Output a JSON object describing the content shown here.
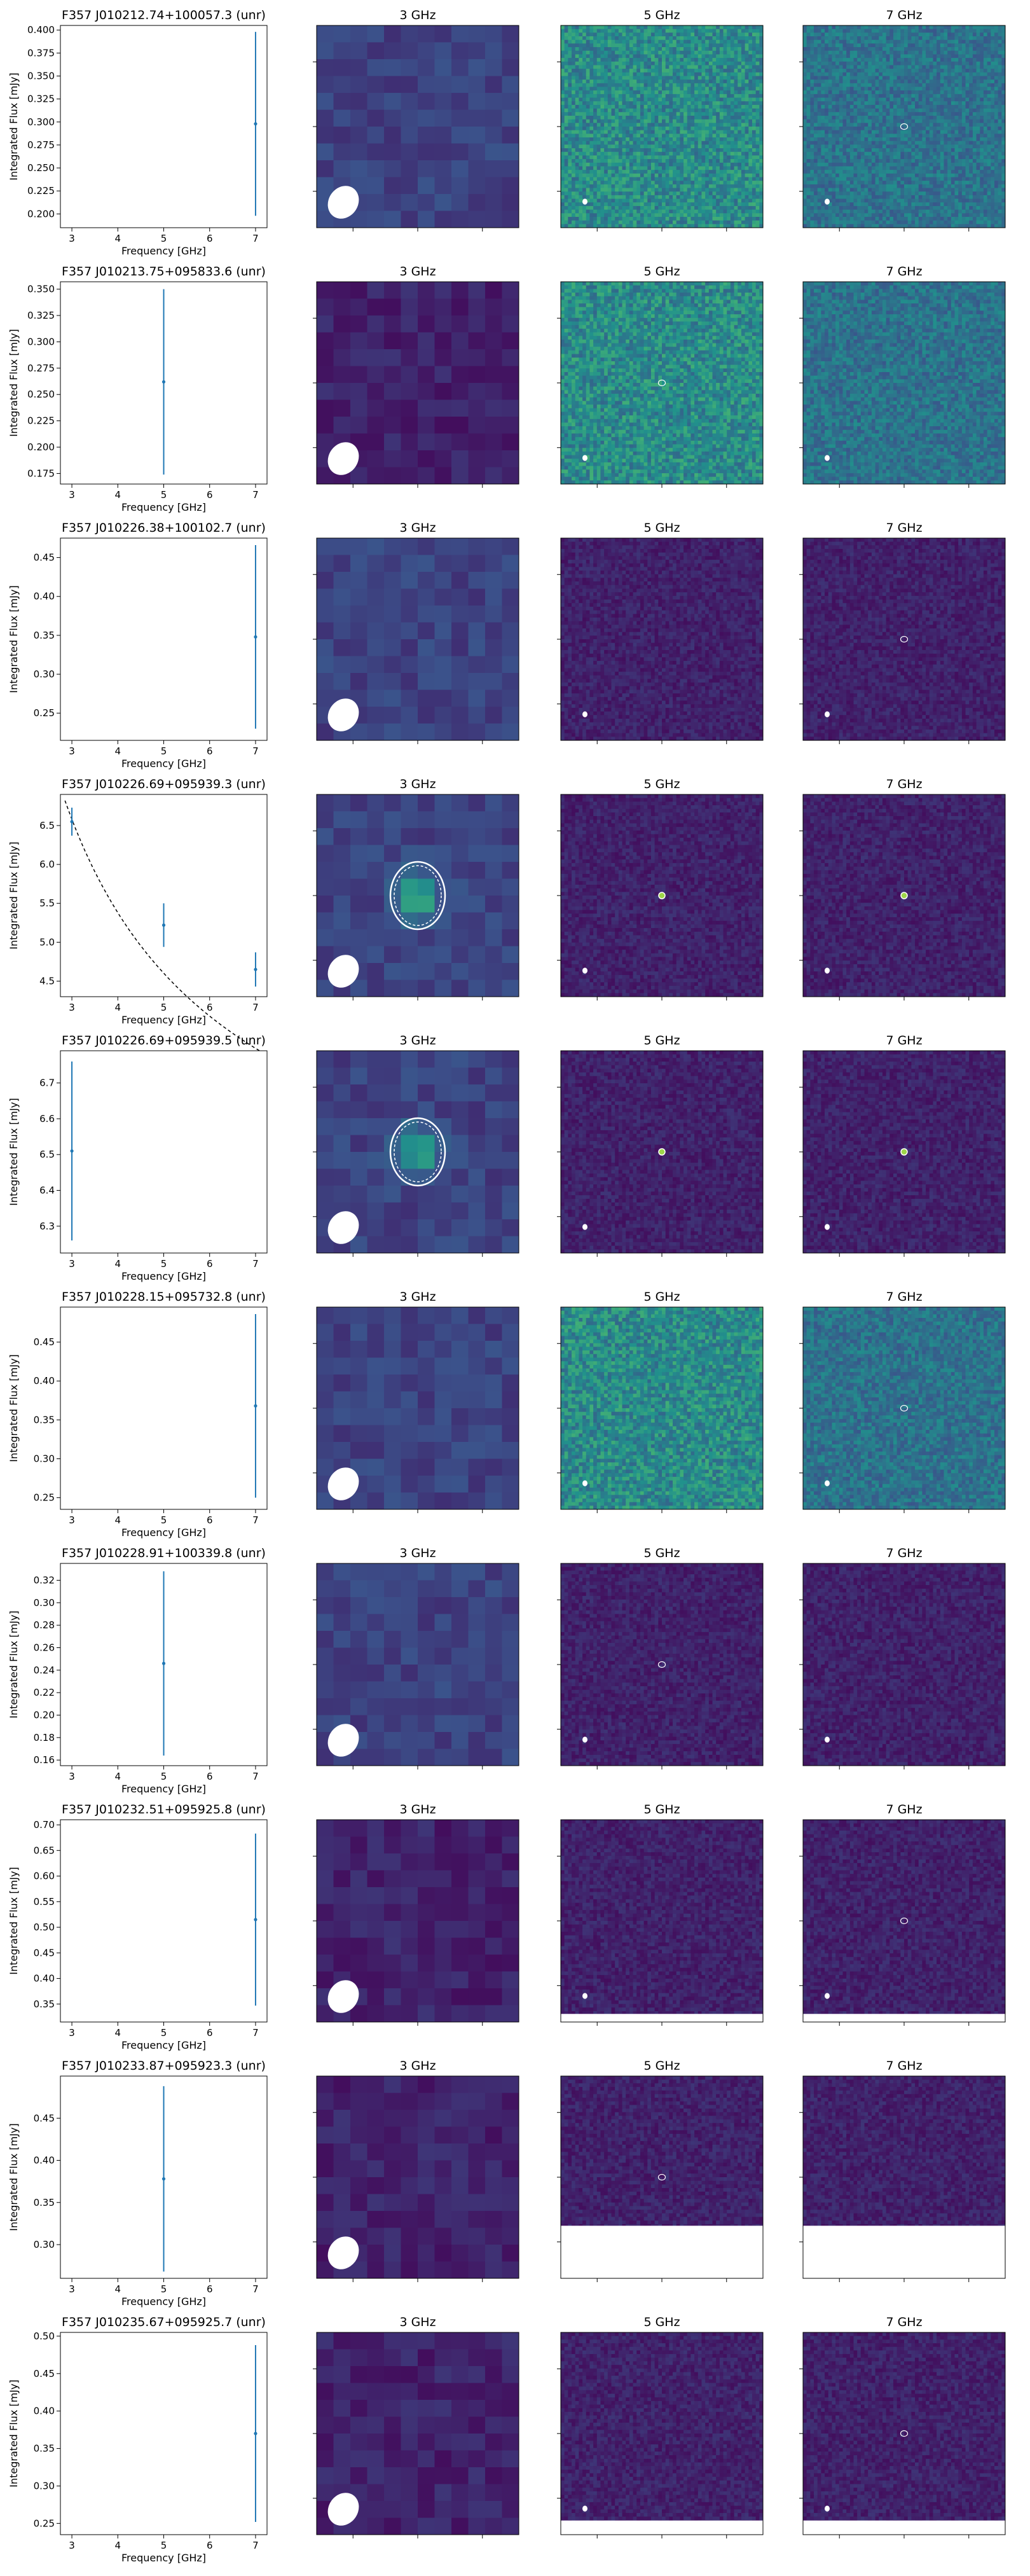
{
  "figure": {
    "panel_titles": [
      "3 GHz",
      "5 GHz",
      "7 GHz"
    ],
    "xlabel": "Frequency [GHz]",
    "ylabel": "Integrated Flux [mJy]",
    "x_ticks": [
      3,
      4,
      5,
      6,
      7
    ],
    "xlim": [
      2.75,
      7.25
    ]
  },
  "colors": {
    "errorbar": "#1f77b4",
    "fit_line": "#000000",
    "contour": "#ffffff",
    "beam": "#ffffff",
    "blank": "#ffffff"
  },
  "chart_data": [
    {
      "type": "scatter",
      "title": "F357 J010212.74+100057.3 (unr)",
      "x": [
        7
      ],
      "y": [
        0.298
      ],
      "yerr": [
        0.1
      ],
      "ylim": [
        0.185,
        0.405
      ],
      "y_ticks": [
        "0.200",
        "0.225",
        "0.250",
        "0.275",
        "0.300",
        "0.325",
        "0.350",
        "0.375",
        "0.400"
      ],
      "fit": false,
      "images": [
        {
          "freq": "3 GHz",
          "style": "coarse",
          "palette": "dim",
          "source": "none",
          "beam": "large"
        },
        {
          "freq": "5 GHz",
          "style": "fine",
          "palette": "bright",
          "source": "none",
          "beam": "small",
          "blank_bottom": 0
        },
        {
          "freq": "7 GHz",
          "style": "fine",
          "palette": "medium",
          "source": "faint",
          "beam": "small",
          "blank_bottom": 0
        }
      ]
    },
    {
      "type": "scatter",
      "title": "F357 J010213.75+095833.6 (unr)",
      "x": [
        5
      ],
      "y": [
        0.262
      ],
      "yerr": [
        0.088
      ],
      "ylim": [
        0.165,
        0.357
      ],
      "y_ticks": [
        "0.175",
        "0.200",
        "0.225",
        "0.250",
        "0.275",
        "0.300",
        "0.325",
        "0.350"
      ],
      "fit": false,
      "images": [
        {
          "freq": "3 GHz",
          "style": "coarse",
          "palette": "dark",
          "source": "none",
          "beam": "large"
        },
        {
          "freq": "5 GHz",
          "style": "fine",
          "palette": "bright",
          "source": "faint",
          "beam": "small",
          "blank_bottom": 0
        },
        {
          "freq": "7 GHz",
          "style": "fine",
          "palette": "medium",
          "source": "none",
          "beam": "small",
          "blank_bottom": 0
        }
      ]
    },
    {
      "type": "scatter",
      "title": "F357 J010226.38+100102.7 (unr)",
      "x": [
        7
      ],
      "y": [
        0.348
      ],
      "yerr": [
        0.118
      ],
      "ylim": [
        0.215,
        0.475
      ],
      "y_ticks": [
        "0.25",
        "0.30",
        "0.35",
        "0.40",
        "0.45"
      ],
      "fit": false,
      "images": [
        {
          "freq": "3 GHz",
          "style": "coarse",
          "palette": "dim",
          "source": "none",
          "beam": "large"
        },
        {
          "freq": "5 GHz",
          "style": "fine",
          "palette": "dark",
          "source": "none",
          "beam": "small",
          "blank_bottom": 0
        },
        {
          "freq": "7 GHz",
          "style": "fine",
          "palette": "dark",
          "source": "faint",
          "beam": "small",
          "blank_bottom": 0
        }
      ]
    },
    {
      "type": "scatter",
      "title": "F357 J010226.69+095939.3 (unr)",
      "x": [
        3,
        5,
        7
      ],
      "y": [
        6.55,
        5.22,
        4.65
      ],
      "yerr": [
        0.18,
        0.28,
        0.22
      ],
      "ylim": [
        4.3,
        6.9
      ],
      "y_ticks": [
        "4.5",
        "5.0",
        "5.5",
        "6.0",
        "6.5"
      ],
      "fit": true,
      "fit_curve": {
        "x_start": 2.85,
        "x_end": 7.2,
        "y_at_3": 6.58,
        "alpha": -0.7
      },
      "images": [
        {
          "freq": "3 GHz",
          "style": "coarse",
          "palette": "dim",
          "source": "bright",
          "beam": "large"
        },
        {
          "freq": "5 GHz",
          "style": "fine",
          "palette": "dark",
          "source": "point",
          "beam": "small",
          "blank_bottom": 0
        },
        {
          "freq": "7 GHz",
          "style": "fine",
          "palette": "dark",
          "source": "point",
          "beam": "small",
          "blank_bottom": 0
        }
      ]
    },
    {
      "type": "scatter",
      "title": "F357 J010226.69+095939.5 (unr)",
      "x": [
        3
      ],
      "y": [
        6.51
      ],
      "yerr": [
        0.25
      ],
      "ylim": [
        6.225,
        6.79
      ],
      "y_ticks": [
        "6.3",
        "6.4",
        "6.5",
        "6.6",
        "6.7"
      ],
      "fit": false,
      "images": [
        {
          "freq": "3 GHz",
          "style": "coarse",
          "palette": "dim",
          "source": "bright",
          "beam": "large"
        },
        {
          "freq": "5 GHz",
          "style": "fine",
          "palette": "dark",
          "source": "point",
          "beam": "small",
          "blank_bottom": 0
        },
        {
          "freq": "7 GHz",
          "style": "fine",
          "palette": "dark",
          "source": "point",
          "beam": "small",
          "blank_bottom": 0
        }
      ]
    },
    {
      "type": "scatter",
      "title": "F357 J010228.15+095732.8 (unr)",
      "x": [
        7
      ],
      "y": [
        0.368
      ],
      "yerr": [
        0.118
      ],
      "ylim": [
        0.235,
        0.495
      ],
      "y_ticks": [
        "0.25",
        "0.30",
        "0.35",
        "0.40",
        "0.45"
      ],
      "fit": false,
      "images": [
        {
          "freq": "3 GHz",
          "style": "coarse",
          "palette": "dim",
          "source": "none",
          "beam": "large"
        },
        {
          "freq": "5 GHz",
          "style": "fine",
          "palette": "bright",
          "source": "none",
          "beam": "small",
          "blank_bottom": 0
        },
        {
          "freq": "7 GHz",
          "style": "fine",
          "palette": "medium",
          "source": "faint",
          "beam": "small",
          "blank_bottom": 0
        }
      ]
    },
    {
      "type": "scatter",
      "title": "F357 J010228.91+100339.8 (unr)",
      "x": [
        5
      ],
      "y": [
        0.246
      ],
      "yerr": [
        0.082
      ],
      "ylim": [
        0.155,
        0.335
      ],
      "y_ticks": [
        "0.16",
        "0.18",
        "0.20",
        "0.22",
        "0.24",
        "0.26",
        "0.28",
        "0.30",
        "0.32"
      ],
      "fit": false,
      "images": [
        {
          "freq": "3 GHz",
          "style": "coarse",
          "palette": "dim",
          "source": "none",
          "beam": "large"
        },
        {
          "freq": "5 GHz",
          "style": "fine",
          "palette": "dark",
          "source": "faint",
          "beam": "small",
          "blank_bottom": 0
        },
        {
          "freq": "7 GHz",
          "style": "fine",
          "palette": "dark",
          "source": "none",
          "beam": "small",
          "blank_bottom": 0
        }
      ]
    },
    {
      "type": "scatter",
      "title": "F357 J010232.51+095925.8 (unr)",
      "x": [
        7
      ],
      "y": [
        0.515
      ],
      "yerr": [
        0.168
      ],
      "ylim": [
        0.315,
        0.71
      ],
      "y_ticks": [
        "0.35",
        "0.40",
        "0.45",
        "0.50",
        "0.55",
        "0.60",
        "0.65",
        "0.70"
      ],
      "fit": false,
      "images": [
        {
          "freq": "3 GHz",
          "style": "coarse",
          "palette": "dark",
          "source": "none",
          "beam": "large"
        },
        {
          "freq": "5 GHz",
          "style": "fine",
          "palette": "dark",
          "source": "none",
          "beam": "small",
          "blank_bottom": 0.04
        },
        {
          "freq": "7 GHz",
          "style": "fine",
          "palette": "dark",
          "source": "faint",
          "beam": "small",
          "blank_bottom": 0.04
        }
      ]
    },
    {
      "type": "scatter",
      "title": "F357 J010233.87+095923.3 (unr)",
      "x": [
        5
      ],
      "y": [
        0.378
      ],
      "yerr": [
        0.11
      ],
      "ylim": [
        0.26,
        0.5
      ],
      "y_ticks": [
        "0.30",
        "0.35",
        "0.40",
        "0.45"
      ],
      "fit": false,
      "images": [
        {
          "freq": "3 GHz",
          "style": "coarse",
          "palette": "dark",
          "source": "none",
          "beam": "large"
        },
        {
          "freq": "5 GHz",
          "style": "fine",
          "palette": "dark",
          "source": "faint",
          "beam": "small",
          "blank_bottom": 0.26
        },
        {
          "freq": "7 GHz",
          "style": "fine",
          "palette": "dark",
          "source": "none",
          "beam": "small",
          "blank_bottom": 0.26
        }
      ]
    },
    {
      "type": "scatter",
      "title": "F357 J010235.67+095925.7 (unr)",
      "x": [
        7
      ],
      "y": [
        0.37
      ],
      "yerr": [
        0.118
      ],
      "ylim": [
        0.235,
        0.505
      ],
      "y_ticks": [
        "0.25",
        "0.30",
        "0.35",
        "0.40",
        "0.45",
        "0.50"
      ],
      "fit": false,
      "images": [
        {
          "freq": "3 GHz",
          "style": "coarse",
          "palette": "dark",
          "source": "none",
          "beam": "large"
        },
        {
          "freq": "5 GHz",
          "style": "fine",
          "palette": "dark",
          "source": "none",
          "beam": "small",
          "blank_bottom": 0.07
        },
        {
          "freq": "7 GHz",
          "style": "fine",
          "palette": "dark",
          "source": "faint",
          "beam": "small",
          "blank_bottom": 0.07
        }
      ]
    }
  ]
}
